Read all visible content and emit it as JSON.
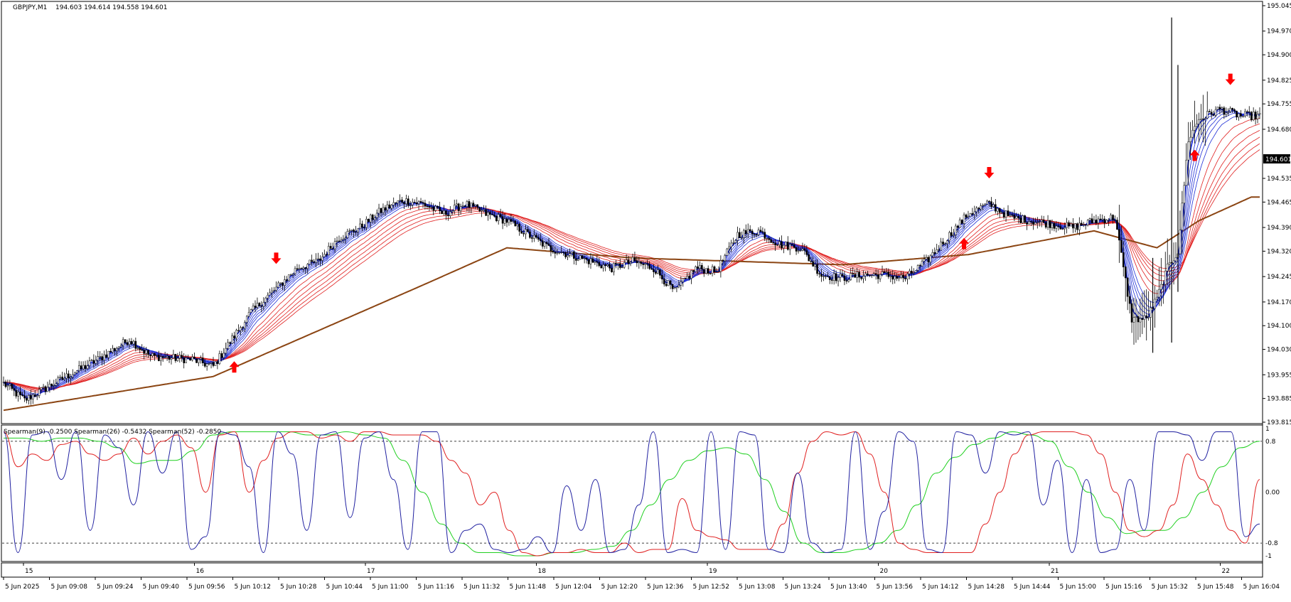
{
  "header": {
    "symbol": "GBPJPY,M1",
    "ohlc": "194.603 194.614 194.558 194.601"
  },
  "indicator_header": "Spearman(9) -0.2500  Spearman(26) -0.5432  Spearman(52) -0.2850",
  "price_badge": "194.601",
  "colors": {
    "fast_emas": "#1f2fd6",
    "slow_emas": "#e02020",
    "long_ema": "#8b4513",
    "candles": "#000000",
    "signal_arrow": "#ff0000",
    "spearman9": "#2020a0",
    "spearman26": "#e02020",
    "spearman52": "#20d020"
  },
  "chart_data": [
    {
      "type": "candlestick",
      "title": "GBPJPY,M1",
      "ylim": [
        193.815,
        195.045
      ],
      "y_ticks": [
        "195.045",
        "194.970",
        "194.900",
        "194.825",
        "194.755",
        "194.680",
        "194.601",
        "194.535",
        "194.465",
        "194.390",
        "194.320",
        "194.245",
        "194.170",
        "194.100",
        "194.030",
        "193.955",
        "193.885",
        "193.815"
      ],
      "last_price": 194.601,
      "close_path": [
        {
          "i": 0,
          "v": 193.93
        },
        {
          "i": 10,
          "v": 193.88
        },
        {
          "i": 30,
          "v": 193.95
        },
        {
          "i": 45,
          "v": 194.0
        },
        {
          "i": 60,
          "v": 194.06
        },
        {
          "i": 70,
          "v": 194.01
        },
        {
          "i": 90,
          "v": 194.0
        },
        {
          "i": 100,
          "v": 193.98
        },
        {
          "i": 110,
          "v": 194.07
        },
        {
          "i": 118,
          "v": 194.14
        },
        {
          "i": 130,
          "v": 194.21
        },
        {
          "i": 140,
          "v": 194.27
        },
        {
          "i": 150,
          "v": 194.29
        },
        {
          "i": 160,
          "v": 194.36
        },
        {
          "i": 170,
          "v": 194.39
        },
        {
          "i": 180,
          "v": 194.44
        },
        {
          "i": 190,
          "v": 194.47
        },
        {
          "i": 200,
          "v": 194.46
        },
        {
          "i": 210,
          "v": 194.43
        },
        {
          "i": 220,
          "v": 194.46
        },
        {
          "i": 230,
          "v": 194.43
        },
        {
          "i": 240,
          "v": 194.41
        },
        {
          "i": 250,
          "v": 194.37
        },
        {
          "i": 260,
          "v": 194.33
        },
        {
          "i": 270,
          "v": 194.31
        },
        {
          "i": 280,
          "v": 194.29
        },
        {
          "i": 290,
          "v": 194.27
        },
        {
          "i": 300,
          "v": 194.29
        },
        {
          "i": 310,
          "v": 194.27
        },
        {
          "i": 320,
          "v": 194.2
        },
        {
          "i": 330,
          "v": 194.27
        },
        {
          "i": 340,
          "v": 194.26
        },
        {
          "i": 350,
          "v": 194.37
        },
        {
          "i": 360,
          "v": 194.38
        },
        {
          "i": 370,
          "v": 194.34
        },
        {
          "i": 380,
          "v": 194.33
        },
        {
          "i": 390,
          "v": 194.25
        },
        {
          "i": 400,
          "v": 194.24
        },
        {
          "i": 410,
          "v": 194.25
        },
        {
          "i": 420,
          "v": 194.25
        },
        {
          "i": 430,
          "v": 194.24
        },
        {
          "i": 440,
          "v": 194.29
        },
        {
          "i": 450,
          "v": 194.36
        },
        {
          "i": 460,
          "v": 194.43
        },
        {
          "i": 470,
          "v": 194.46
        },
        {
          "i": 480,
          "v": 194.42
        },
        {
          "i": 490,
          "v": 194.41
        },
        {
          "i": 500,
          "v": 194.4
        },
        {
          "i": 510,
          "v": 194.39
        },
        {
          "i": 520,
          "v": 194.41
        },
        {
          "i": 530,
          "v": 194.42
        },
        {
          "i": 538,
          "v": 194.12
        },
        {
          "i": 545,
          "v": 194.12
        },
        {
          "i": 550,
          "v": 194.18
        },
        {
          "i": 555,
          "v": 194.27
        },
        {
          "i": 560,
          "v": 194.32
        },
        {
          "i": 565,
          "v": 194.65
        },
        {
          "i": 570,
          "v": 194.71
        },
        {
          "i": 580,
          "v": 194.74
        },
        {
          "i": 590,
          "v": 194.72
        }
      ],
      "fast_ema_offsets": [
        0,
        -0.012,
        -0.024,
        -0.036,
        -0.048,
        -0.06
      ],
      "slow_ema_offsets": [
        -0.07,
        -0.085,
        -0.1,
        -0.115,
        -0.13,
        -0.145
      ],
      "long_ema": [
        {
          "i": 0,
          "v": 193.85
        },
        {
          "i": 100,
          "v": 193.95
        },
        {
          "i": 200,
          "v": 194.22
        },
        {
          "i": 240,
          "v": 194.33
        },
        {
          "i": 300,
          "v": 194.3
        },
        {
          "i": 400,
          "v": 194.28
        },
        {
          "i": 460,
          "v": 194.31
        },
        {
          "i": 520,
          "v": 194.38
        },
        {
          "i": 550,
          "v": 194.33
        },
        {
          "i": 570,
          "v": 194.41
        },
        {
          "i": 595,
          "v": 194.48
        }
      ],
      "down_arrows": [
        130,
        470,
        585
      ],
      "up_arrows": [
        110,
        458,
        568
      ]
    },
    {
      "type": "line",
      "title": "Spearman",
      "ylim": [
        -1,
        1
      ],
      "y_ticks": [
        "1",
        "0.8",
        "0.00",
        "-0.8",
        "-1"
      ],
      "levels": [
        0.8,
        -0.8
      ],
      "series": [
        {
          "name": "Spearman(9)",
          "values": [
            0.95,
            -0.95,
            0.9,
            0.95,
            0.2,
            0.95,
            -0.6,
            0.9,
            0.7,
            -0.2,
            0.95,
            0.3,
            0.95,
            -0.9,
            -0.7,
            0.95,
            0.9,
            0.4,
            -0.95,
            0.95,
            0.6,
            -0.6,
            0.9,
            0.95,
            -0.4,
            0.85,
            0.95,
            0.2,
            -0.9,
            0.95,
            0.95,
            -0.95,
            -0.6,
            -0.5,
            -0.9,
            -0.95,
            -0.9,
            -0.7,
            -0.95,
            0.1,
            -0.6,
            0.2,
            -0.95,
            -0.9,
            -0.2,
            0.95,
            -0.95,
            -0.9,
            -0.95,
            0.95,
            -0.9,
            0.95,
            0.9,
            -0.9,
            -0.95,
            0.3,
            -0.8,
            -0.95,
            -0.9,
            0.95,
            -0.9,
            -0.3,
            0.95,
            0.8,
            -0.9,
            -0.95,
            0.95,
            0.9,
            0.3,
            0.95,
            0.9,
            0.95,
            -0.2,
            0.5,
            -0.95,
            0.2,
            -0.95,
            -0.9,
            0.2,
            -0.6,
            0.95,
            0.95,
            0.9,
            0.5,
            0.95,
            0.95,
            -0.7,
            -0.5
          ]
        },
        {
          "name": "Spearman(26)",
          "values": [
            0.95,
            0.4,
            0.6,
            0.5,
            0.75,
            0.8,
            0.6,
            0.5,
            0.6,
            0.85,
            0.6,
            0.8,
            0.9,
            0.7,
            0.0,
            0.9,
            0.95,
            0.0,
            0.5,
            0.85,
            0.95,
            0.95,
            0.85,
            0.9,
            0.8,
            0.95,
            0.95,
            0.9,
            0.9,
            0.9,
            0.8,
            0.5,
            0.3,
            -0.2,
            0.0,
            -0.6,
            -0.95,
            -1.0,
            -0.95,
            -0.95,
            -0.9,
            -0.95,
            -0.95,
            -0.8,
            -0.95,
            -0.9,
            -0.9,
            -0.1,
            -0.6,
            -0.7,
            -0.75,
            -0.9,
            -0.9,
            -0.9,
            -0.5,
            0.3,
            0.8,
            0.95,
            0.9,
            0.95,
            0.6,
            0.0,
            -0.8,
            -0.9,
            -0.95,
            -0.95,
            -0.95,
            -0.95,
            -0.5,
            0.0,
            0.6,
            0.9,
            0.95,
            0.95,
            0.95,
            0.9,
            0.6,
            0.0,
            -0.6,
            -0.7,
            -0.6,
            -0.2,
            0.6,
            0.2,
            -0.2,
            -0.6,
            -0.8,
            0.2
          ]
        },
        {
          "name": "Spearman(52)",
          "values": [
            0.85,
            0.85,
            0.8,
            0.85,
            0.85,
            0.8,
            0.7,
            0.45,
            0.5,
            0.5,
            0.65,
            0.9,
            0.95,
            0.95,
            0.95,
            0.95,
            0.9,
            0.9,
            0.95,
            0.9,
            0.85,
            0.5,
            0.0,
            -0.5,
            -0.8,
            -0.95,
            -0.95,
            -1.0,
            -1.0,
            -0.95,
            -0.95,
            -0.9,
            -0.85,
            -0.6,
            -0.2,
            0.2,
            0.5,
            0.65,
            0.7,
            0.6,
            0.2,
            -0.3,
            -0.8,
            -0.95,
            -0.95,
            -0.9,
            -0.8,
            -0.6,
            -0.2,
            0.3,
            0.55,
            0.75,
            0.85,
            0.95,
            0.9,
            0.8,
            0.4,
            0.0,
            -0.4,
            -0.65,
            -0.6,
            -0.6,
            -0.4,
            0.0,
            0.4,
            0.7,
            0.8
          ]
        }
      ]
    }
  ],
  "x_axis": {
    "day_labels": [
      "15",
      "16",
      "17",
      "18",
      "19",
      "20",
      "21",
      "22"
    ],
    "time_labels": [
      "5 Jun 2025",
      "5 Jun 09:08",
      "5 Jun 09:24",
      "5 Jun 09:40",
      "5 Jun 09:56",
      "5 Jun 10:12",
      "5 Jun 10:28",
      "5 Jun 10:44",
      "5 Jun 11:00",
      "5 Jun 11:16",
      "5 Jun 11:32",
      "5 Jun 11:48",
      "5 Jun 12:04",
      "5 Jun 12:20",
      "5 Jun 12:36",
      "5 Jun 12:52",
      "5 Jun 13:08",
      "5 Jun 13:24",
      "5 Jun 13:40",
      "5 Jun 13:56",
      "5 Jun 14:12",
      "5 Jun 14:28",
      "5 Jun 14:44",
      "5 Jun 15:00",
      "5 Jun 15:16",
      "5 Jun 15:32",
      "5 Jun 15:48",
      "5 Jun 16:04"
    ]
  }
}
